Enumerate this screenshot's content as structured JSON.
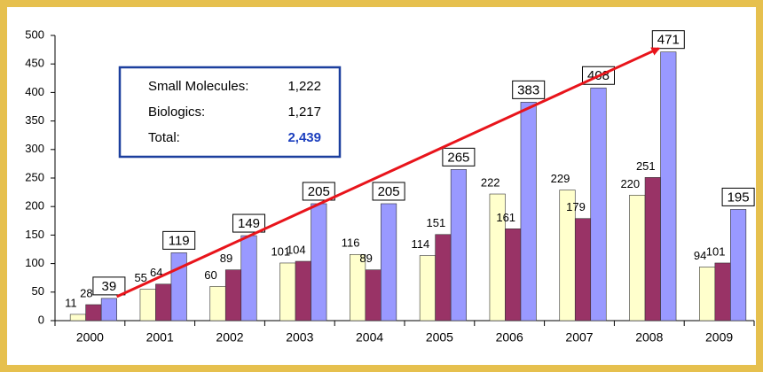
{
  "chart_data": {
    "type": "bar",
    "categories": [
      "2000",
      "2001",
      "2002",
      "2003",
      "2004",
      "2005",
      "2006",
      "2007",
      "2008",
      "2009"
    ],
    "series": [
      {
        "color": "#ffffcc",
        "values": [
          11,
          55,
          60,
          101,
          116,
          114,
          222,
          229,
          220,
          94
        ]
      },
      {
        "color": "#993366",
        "values": [
          28,
          64,
          89,
          104,
          89,
          151,
          161,
          179,
          251,
          101
        ]
      },
      {
        "color": "#9999ff",
        "values": [
          39,
          119,
          149,
          205,
          205,
          265,
          383,
          408,
          471,
          195
        ]
      }
    ],
    "ylim": [
      0,
      500
    ],
    "yticks": [
      0,
      50,
      100,
      150,
      200,
      250,
      300,
      350,
      400,
      450,
      500
    ],
    "grid": false,
    "summary": [
      {
        "label": "Small Molecules:",
        "value": "1,222"
      },
      {
        "label": "Biologics:",
        "value": "1,217"
      },
      {
        "label": "Total:",
        "value": "2,439"
      }
    ]
  }
}
